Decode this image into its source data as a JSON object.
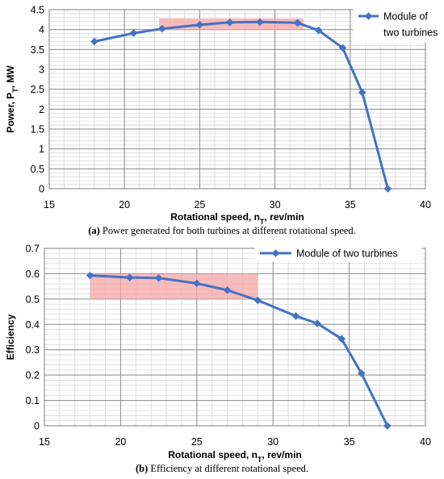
{
  "chart_data": [
    {
      "type": "line",
      "panel": "a",
      "xlabel_main": "Rotational speed, n",
      "xlabel_sub": "T",
      "xlabel_rest": ", rev/min",
      "ylabel_main": "Power, P",
      "ylabel_sub": "T",
      "ylabel_rest": ", MW",
      "xlim": [
        15,
        40
      ],
      "ylim": [
        0,
        4.5
      ],
      "xticks": [
        15,
        20,
        25,
        30,
        35,
        40
      ],
      "yticks": [
        0,
        0.5,
        1,
        1.5,
        2,
        2.5,
        3,
        3.5,
        4,
        4.5
      ],
      "xtick_labels": [
        "15",
        "20",
        "25",
        "30",
        "35",
        "40"
      ],
      "ytick_labels": [
        "0",
        "0.5",
        "1",
        "1.5",
        "2",
        "2.5",
        "3",
        "3.5",
        "4",
        "4.5"
      ],
      "minor_x_step": 1,
      "minor_y_step": 0.1,
      "grid": true,
      "legend_placement": "top-right",
      "legend_lines": [
        "Module of",
        "two turbines"
      ],
      "series": [
        {
          "name": "Module of two turbines",
          "color": "#4472c4",
          "x": [
            18.0,
            20.6,
            22.5,
            25.0,
            27.0,
            29.0,
            31.5,
            32.9,
            34.5,
            35.8,
            37.5
          ],
          "y": [
            3.7,
            3.91,
            4.02,
            4.12,
            4.18,
            4.19,
            4.17,
            3.98,
            3.54,
            2.42,
            0.0
          ]
        }
      ],
      "highlight": {
        "x": [
          22.3,
          31.9
        ],
        "y": [
          3.98,
          4.28
        ],
        "color": "#f4a6a6"
      }
    },
    {
      "type": "line",
      "panel": "b",
      "xlabel_main": "Rotational speed, n",
      "xlabel_sub": "T",
      "xlabel_rest": ", rev/min",
      "ylabel_main": "Efficiency",
      "ylabel_sub": "",
      "ylabel_rest": "",
      "xlim": [
        15,
        40
      ],
      "ylim": [
        0,
        0.7
      ],
      "xticks": [
        15,
        20,
        25,
        30,
        35,
        40
      ],
      "yticks": [
        0,
        0.1,
        0.2,
        0.3,
        0.4,
        0.5,
        0.6,
        0.7
      ],
      "xtick_labels": [
        "15",
        "20",
        "25",
        "30",
        "35",
        "40"
      ],
      "ytick_labels": [
        "0",
        "0.1",
        "0.2",
        "0.3",
        "0.4",
        "0.5",
        "0.6",
        "0.7"
      ],
      "minor_x_step": 1,
      "minor_y_step": 0.02,
      "grid": true,
      "legend_placement": "top-right",
      "legend_lines": [
        "Module of two turbines"
      ],
      "series": [
        {
          "name": "Module of two turbines",
          "color": "#4472c4",
          "x": [
            18.0,
            20.6,
            22.5,
            25.0,
            27.0,
            29.0,
            31.5,
            32.9,
            34.5,
            35.8,
            37.5
          ],
          "y": [
            0.593,
            0.585,
            0.583,
            0.562,
            0.535,
            0.495,
            0.433,
            0.404,
            0.343,
            0.207,
            0.0
          ]
        }
      ],
      "highlight": {
        "x": [
          18.0,
          29.0
        ],
        "y": [
          0.5,
          0.6
        ],
        "color": "#f4a6a6"
      }
    }
  ],
  "captions": [
    {
      "label": "(a)",
      "text": " Power generated for both turbines at different rotational speed."
    },
    {
      "label": "(b)",
      "text": " Efficiency at different rotational speed."
    }
  ]
}
